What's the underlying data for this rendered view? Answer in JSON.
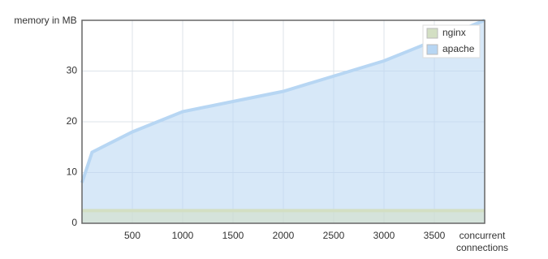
{
  "chart_data": {
    "type": "area",
    "y_label": "memory in MB",
    "x_label": "concurrent connections",
    "x": [
      0,
      100,
      500,
      1000,
      1500,
      2000,
      2500,
      3000,
      3500,
      4000
    ],
    "series": [
      {
        "name": "nginx",
        "color": "#d3dfc3",
        "values": [
          2.5,
          2.5,
          2.5,
          2.5,
          2.5,
          2.5,
          2.5,
          2.5,
          2.5,
          2.5
        ]
      },
      {
        "name": "apache",
        "color": "#b7d6f3",
        "values": [
          8,
          14,
          18,
          22,
          24,
          26,
          29,
          32,
          36,
          40
        ]
      }
    ],
    "xlim": [
      0,
      4000
    ],
    "xticks": [
      500,
      1000,
      1500,
      2000,
      2500,
      3000,
      3500
    ],
    "ylim": [
      0,
      40
    ],
    "yticks": [
      0,
      10,
      20,
      30
    ],
    "grid": true,
    "legend": "top-right"
  }
}
